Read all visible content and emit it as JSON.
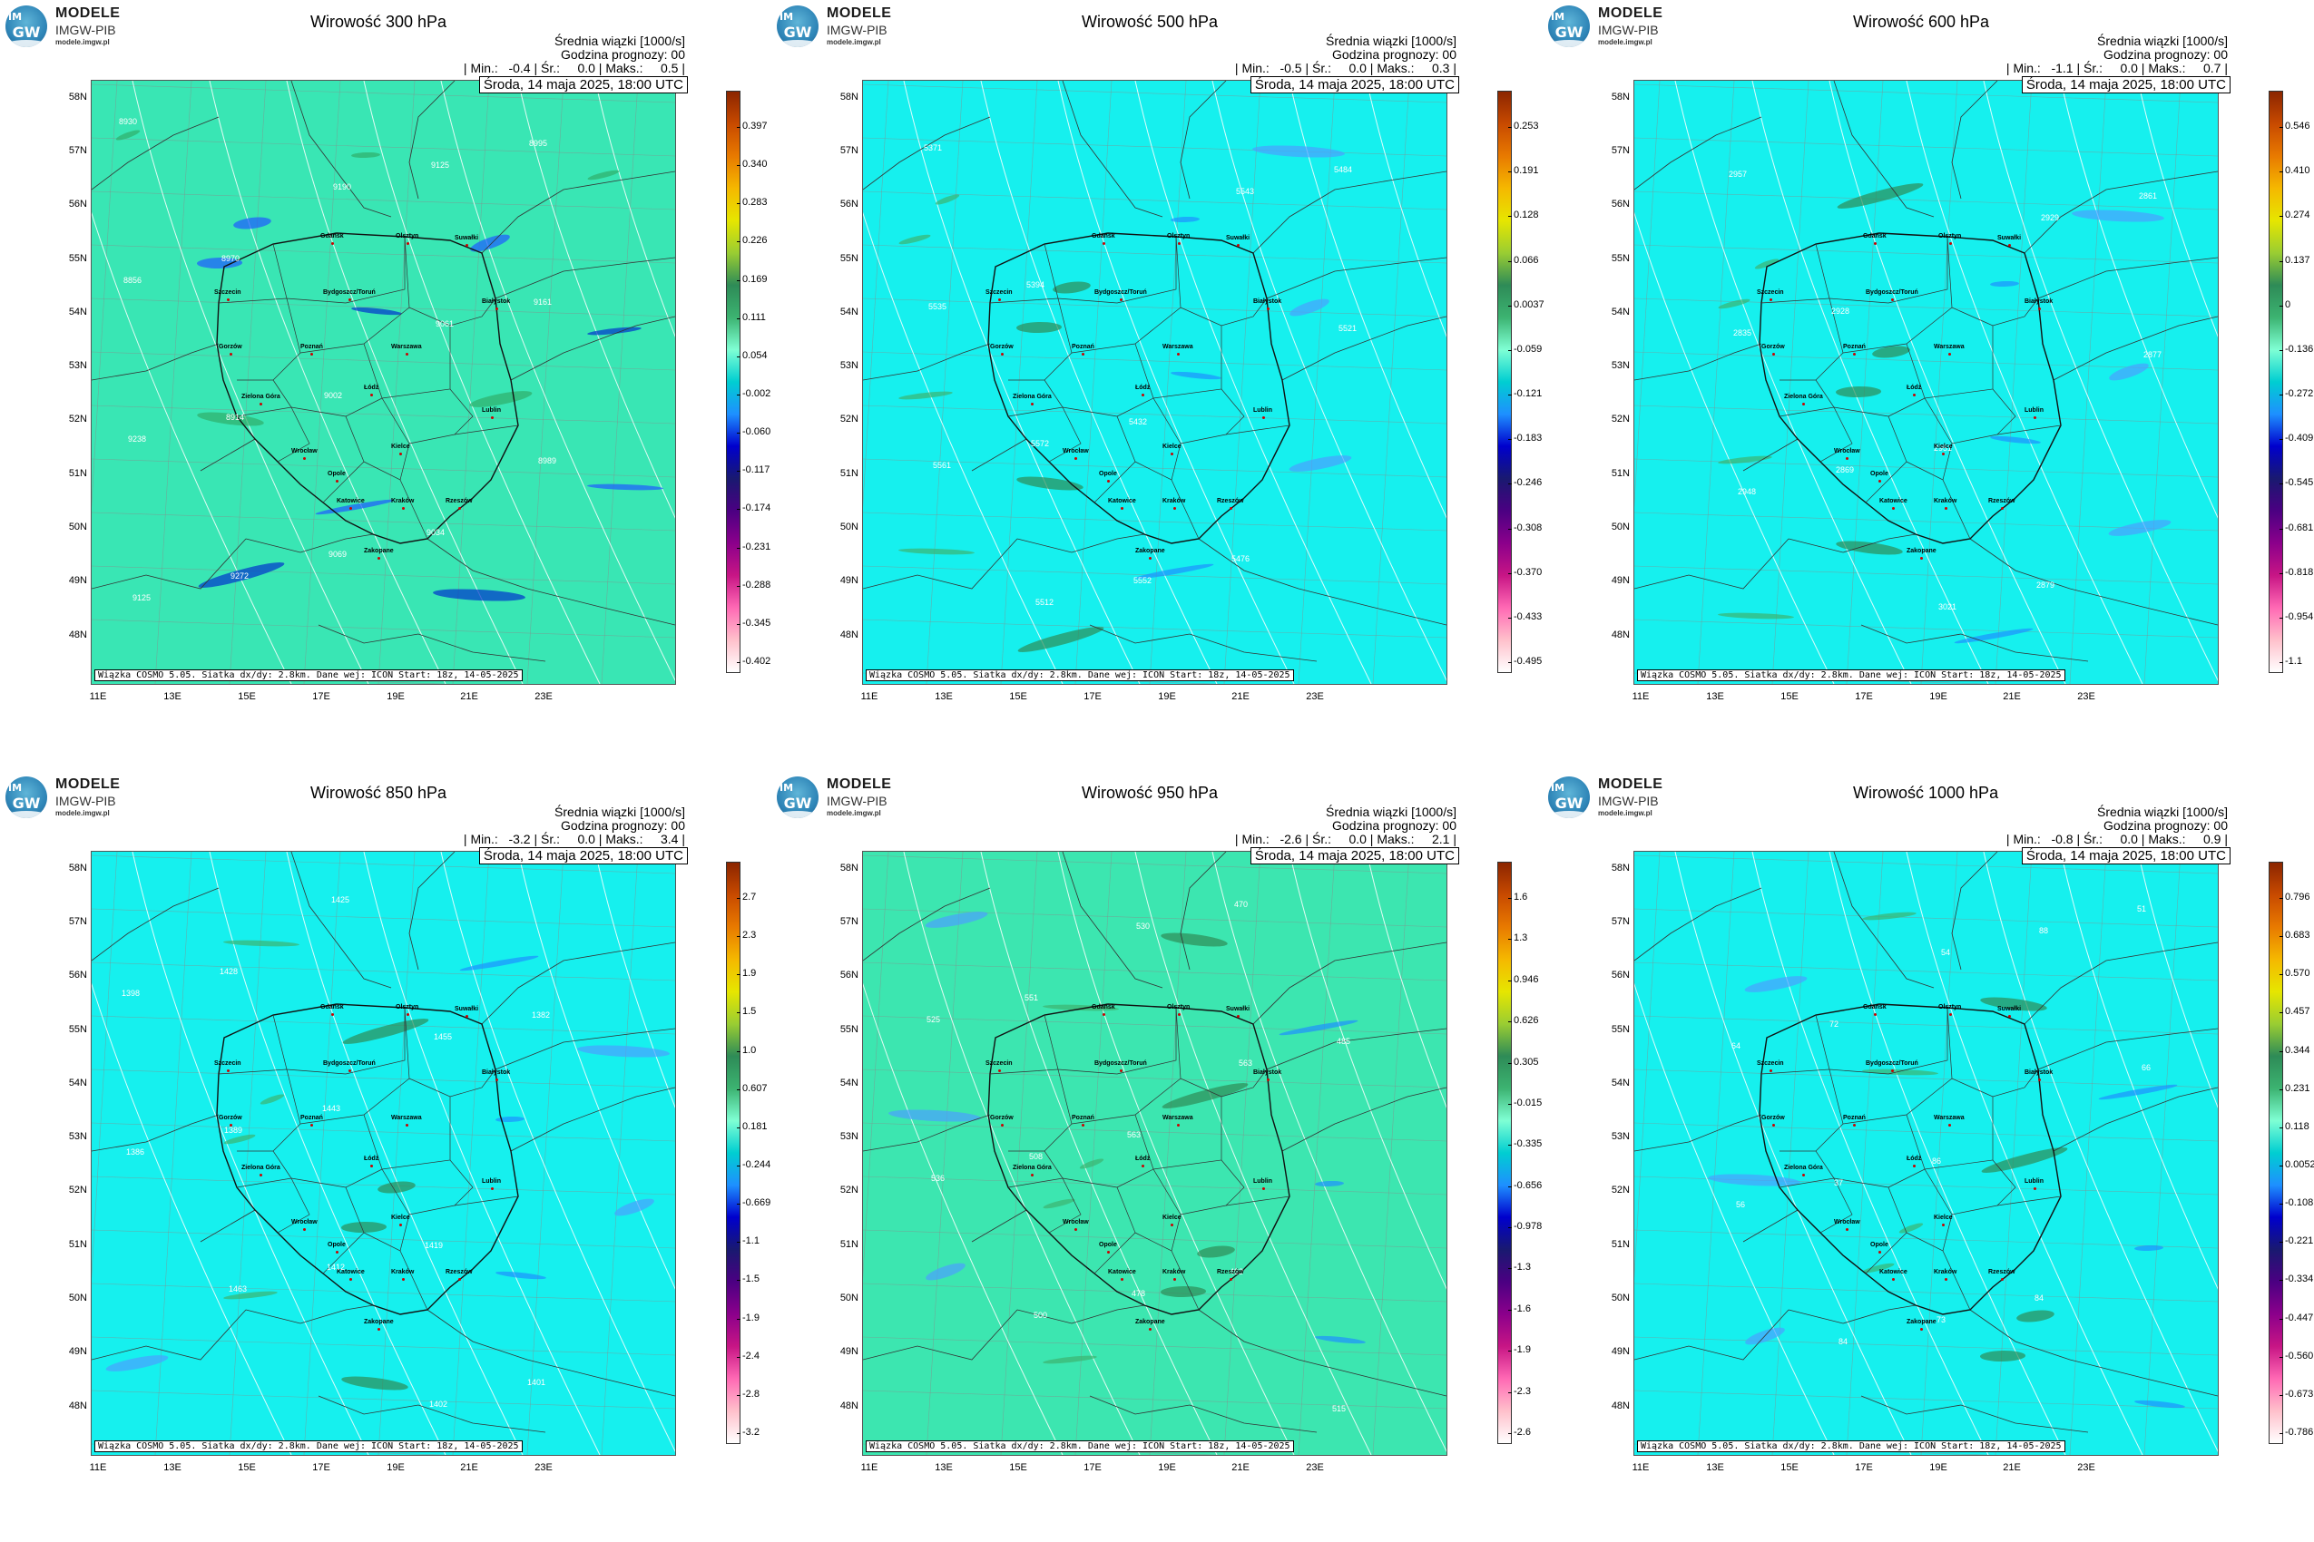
{
  "logo": {
    "line1": "MODELE",
    "line2": "IMGW-PIB",
    "line3": "modele.imgw.pl",
    "mark_im": "IM",
    "mark_gw": "GW"
  },
  "common": {
    "subtitle": "Średnia wiązki [1000/s]",
    "forecast_hour": "Godzina prognozy: 00",
    "date": "Środa, 14 maja 2025, 18:00 UTC",
    "footer": "Wiązka COSMO 5.05. Siatka dx/dy: 2.8km. Dane wej: ICON Start: 18z, 14-05-2025",
    "min_label": "| Min.:",
    "avg_label": "| Śr.:",
    "max_label": "| Maks.:",
    "lat_labels": [
      "58N",
      "57N",
      "56N",
      "55N",
      "54N",
      "53N",
      "52N",
      "51N",
      "50N",
      "49N",
      "48N"
    ],
    "lon_labels": [
      "11E",
      "13E",
      "15E",
      "17E",
      "19E",
      "21E",
      "23E"
    ]
  },
  "cities": [
    "Gdańsk",
    "Olsztyn",
    "Suwałki",
    "Szczecin",
    "Bydgoszcz/Toruń",
    "Białystok",
    "Gorzów",
    "Poznań",
    "Warszawa",
    "Zielona Góra",
    "Łódź",
    "Lublin",
    "Wrocław",
    "Kielce",
    "Opole",
    "Katowice",
    "Kraków",
    "Rzeszów",
    "Zakopane"
  ],
  "panels": [
    {
      "title": "Wirowość 300 hPa",
      "min": "-0.4",
      "avg": "0.0",
      "max": "0.5",
      "background": "#39e6b4",
      "colorbar": [
        "0.397",
        "0.340",
        "0.283",
        "0.226",
        "0.169",
        "0.111",
        "0.054",
        "-0.002",
        "-0.060",
        "-0.117",
        "-0.174",
        "-0.231",
        "-0.288",
        "-0.345",
        "-0.402"
      ],
      "contours": [
        "8930",
        "8970",
        "9002",
        "9034",
        "8995",
        "8856",
        "8914",
        "9069",
        "9125",
        "9161",
        "9238",
        "9272",
        "9190",
        "9061",
        "8989",
        "9125"
      ]
    },
    {
      "title": "Wirowość 500 hPa",
      "min": "-0.5",
      "avg": "0.0",
      "max": "0.3",
      "background": "#16f0ee",
      "colorbar": [
        "0.253",
        "0.191",
        "0.128",
        "0.066",
        "0.0037",
        "-0.059",
        "-0.121",
        "-0.183",
        "-0.246",
        "-0.308",
        "-0.370",
        "-0.433",
        "-0.495"
      ],
      "contours": [
        "5371",
        "5394",
        "5432",
        "5476",
        "5484",
        "5535",
        "5572",
        "5552",
        "5543",
        "5521",
        "5561",
        "5512"
      ]
    },
    {
      "title": "Wirowość 600 hPa",
      "min": "-1.1",
      "avg": "0.0",
      "max": "0.7",
      "background": "#16f0ee",
      "colorbar": [
        "0.546",
        "0.410",
        "0.274",
        "0.137",
        "0",
        "-0.136",
        "-0.272",
        "-0.409",
        "-0.545",
        "-0.681",
        "-0.818",
        "-0.954",
        "-1.1"
      ],
      "contours": [
        "2957",
        "2928",
        "2951",
        "2879",
        "2861",
        "2835",
        "2869",
        "3021",
        "2929",
        "2877",
        "2948"
      ]
    },
    {
      "title": "Wirowość 850 hPa",
      "min": "-3.2",
      "avg": "0.0",
      "max": "3.4",
      "background": "#16f0ee",
      "colorbar": [
        "2.7",
        "2.3",
        "1.9",
        "1.5",
        "1.0",
        "0.607",
        "0.181",
        "-0.244",
        "-0.669",
        "-1.1",
        "-1.5",
        "-1.9",
        "-2.4",
        "-2.8",
        "-3.2"
      ],
      "contours": [
        "1428",
        "1443",
        "1419",
        "1401",
        "1398",
        "1389",
        "1412",
        "1402",
        "1382",
        "1386",
        "1463",
        "1425",
        "1455"
      ]
    },
    {
      "title": "Wirowość 950 hPa",
      "min": "-2.6",
      "avg": "0.0",
      "max": "2.1",
      "background": "#3ce6b0",
      "colorbar": [
        "1.6",
        "1.3",
        "0.946",
        "0.626",
        "0.305",
        "-0.015",
        "-0.335",
        "-0.656",
        "-0.978",
        "-1.3",
        "-1.6",
        "-1.9",
        "-2.3",
        "-2.6"
      ],
      "contours": [
        "551",
        "563",
        "493",
        "515",
        "525",
        "508",
        "478",
        "470",
        "485",
        "536",
        "500",
        "530",
        "563"
      ]
    },
    {
      "title": "Wirowość 1000 hPa",
      "min": "-0.8",
      "avg": "0.0",
      "max": "0.9",
      "background": "#16f0ee",
      "colorbar": [
        "0.796",
        "0.683",
        "0.570",
        "0.457",
        "0.344",
        "0.231",
        "0.118",
        "0.0052",
        "-0.108",
        "-0.221",
        "-0.334",
        "-0.447",
        "-0.560",
        "-0.673",
        "-0.786"
      ],
      "contours": [
        "72",
        "86",
        "84",
        "51",
        "64",
        "37",
        "73",
        "88",
        "66",
        "56",
        "84",
        "54"
      ]
    }
  ],
  "colorbar_gradient": [
    "#8b2500",
    "#c84a00",
    "#e87a00",
    "#f5b800",
    "#e6e600",
    "#9acd32",
    "#2e8b57",
    "#3cb371",
    "#7fffd4",
    "#00ced1",
    "#1e90ff",
    "#0000cd",
    "#191970",
    "#4b0082",
    "#8b008b",
    "#c71585",
    "#ff69b4",
    "#ffc0cb",
    "#ffffff"
  ]
}
